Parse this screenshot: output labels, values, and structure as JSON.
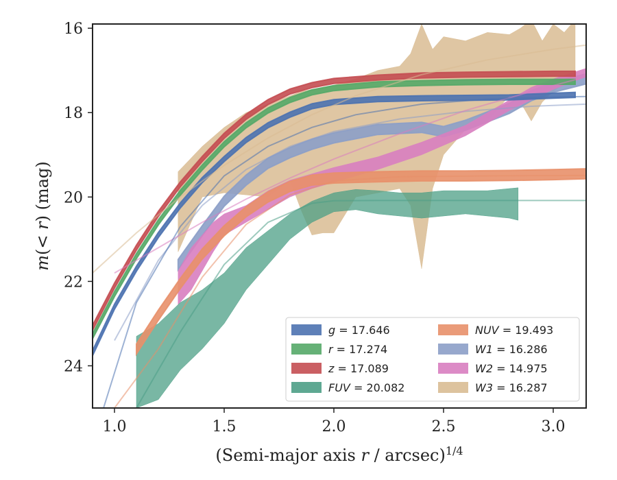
{
  "chart_data": {
    "type": "area",
    "xlabel": "(Semi-major axis r / arcsec)",
    "xlabel_exponent": "1/4",
    "ylabel": "m(< r) (mag)",
    "xlim": [
      0.9,
      3.15
    ],
    "ylim": [
      25.0,
      15.9
    ],
    "y_inverted": true,
    "x_ticks": [
      1.0,
      1.5,
      2.0,
      2.5,
      3.0
    ],
    "x_tick_labels": [
      "1.0",
      "1.5",
      "2.0",
      "2.5",
      "3.0"
    ],
    "y_ticks": [
      16,
      18,
      20,
      22,
      24
    ],
    "y_tick_labels": [
      "16",
      "18",
      "20",
      "22",
      "24"
    ],
    "grid": false,
    "legend_position": "lower-right",
    "legend_columns": 2,
    "series": [
      {
        "key": "g",
        "name": "g",
        "label_value": "17.646",
        "color": "#4c72b0",
        "x": [
          0.9,
          1.0,
          1.1,
          1.2,
          1.3,
          1.4,
          1.5,
          1.6,
          1.7,
          1.8,
          1.9,
          2.0,
          2.2,
          2.4,
          2.6,
          2.8,
          3.0,
          3.1
        ],
        "y": [
          23.7,
          22.6,
          21.7,
          20.9,
          20.2,
          19.6,
          19.1,
          18.65,
          18.3,
          18.05,
          17.85,
          17.75,
          17.68,
          17.66,
          17.65,
          17.64,
          17.6,
          17.58
        ],
        "band": 0.06,
        "fit": {
          "x": [
            0.95,
            1.1,
            1.3,
            1.5,
            1.7,
            1.9,
            2.1,
            2.4,
            2.7,
            3.0,
            3.15
          ],
          "y": [
            25.0,
            22.5,
            20.7,
            19.5,
            18.8,
            18.35,
            18.05,
            17.8,
            17.68,
            17.63,
            17.62
          ]
        }
      },
      {
        "key": "r",
        "name": "r",
        "label_value": "17.274",
        "color": "#55a868",
        "x": [
          0.9,
          1.0,
          1.1,
          1.2,
          1.3,
          1.4,
          1.5,
          1.6,
          1.7,
          1.8,
          1.9,
          2.0,
          2.2,
          2.4,
          2.6,
          2.8,
          3.0,
          3.1
        ],
        "y": [
          23.3,
          22.3,
          21.4,
          20.6,
          19.9,
          19.3,
          18.75,
          18.3,
          17.95,
          17.7,
          17.52,
          17.42,
          17.33,
          17.3,
          17.28,
          17.27,
          17.27,
          17.27
        ],
        "band": 0.06
      },
      {
        "key": "z",
        "name": "z",
        "label_value": "17.089",
        "color": "#c44e52",
        "x": [
          0.9,
          1.0,
          1.1,
          1.2,
          1.3,
          1.4,
          1.5,
          1.6,
          1.7,
          1.8,
          1.9,
          2.0,
          2.2,
          2.4,
          2.6,
          2.8,
          3.0,
          3.1
        ],
        "y": [
          23.1,
          22.1,
          21.2,
          20.4,
          19.7,
          19.1,
          18.55,
          18.1,
          17.75,
          17.5,
          17.35,
          17.25,
          17.17,
          17.12,
          17.1,
          17.09,
          17.08,
          17.08
        ],
        "band": 0.06
      },
      {
        "key": "FUV",
        "name": "FUV",
        "label_value": "20.082",
        "color": "#4c9f86",
        "x": [
          1.1,
          1.2,
          1.3,
          1.4,
          1.5,
          1.6,
          1.7,
          1.8,
          1.9,
          2.0,
          2.1,
          2.2,
          2.3,
          2.4,
          2.5,
          2.6,
          2.7,
          2.8,
          2.84
        ],
        "y_upper": [
          23.3,
          23.0,
          22.5,
          22.2,
          21.8,
          21.2,
          20.8,
          20.4,
          20.1,
          19.9,
          19.82,
          19.85,
          19.9,
          19.9,
          19.85,
          19.85,
          19.85,
          19.8,
          19.78
        ],
        "y_lower": [
          25.0,
          24.8,
          24.1,
          23.6,
          23.0,
          22.2,
          21.6,
          21.0,
          20.6,
          20.35,
          20.3,
          20.4,
          20.45,
          20.5,
          20.45,
          20.4,
          20.45,
          20.5,
          20.55
        ],
        "fit": {
          "x": [
            1.1,
            1.3,
            1.5,
            1.7,
            1.9,
            2.0,
            2.2,
            2.6,
            3.15
          ],
          "y": [
            25.0,
            23.2,
            21.6,
            20.6,
            20.15,
            20.09,
            20.082,
            20.082,
            20.082
          ]
        }
      },
      {
        "key": "NUV",
        "name": "NUV",
        "label_value": "19.493",
        "color": "#e8906a",
        "x": [
          1.1,
          1.2,
          1.3,
          1.4,
          1.5,
          1.6,
          1.7,
          1.8,
          1.9,
          2.0,
          2.2,
          2.4,
          2.6,
          2.8,
          3.0,
          3.15
        ],
        "y": [
          23.6,
          22.8,
          22.05,
          21.35,
          20.8,
          20.35,
          20.0,
          19.75,
          19.6,
          19.55,
          19.52,
          19.5,
          19.5,
          19.49,
          19.47,
          19.45
        ],
        "band": 0.12,
        "fit": {
          "x": [
            1.0,
            1.2,
            1.4,
            1.6,
            1.8,
            2.0,
            2.3,
            2.7,
            3.15
          ],
          "y": [
            25.0,
            23.6,
            21.9,
            20.65,
            19.95,
            19.62,
            19.52,
            19.5,
            19.49
          ]
        }
      },
      {
        "key": "W1",
        "name": "W1",
        "label_value": "16.286",
        "color": "#8c9ec8",
        "x": [
          1.29,
          1.4,
          1.5,
          1.6,
          1.7,
          1.8,
          1.9,
          2.0,
          2.2,
          2.4,
          2.5,
          2.6,
          2.7,
          2.8,
          2.9,
          3.0,
          3.15
        ],
        "y": [
          21.6,
          20.8,
          20.1,
          19.6,
          19.2,
          18.95,
          18.75,
          18.6,
          18.4,
          18.35,
          18.45,
          18.3,
          18.1,
          17.9,
          17.6,
          17.4,
          17.2
        ],
        "band": 0.12,
        "fit": {
          "x": [
            1.0,
            1.2,
            1.4,
            1.6,
            1.8,
            2.0,
            2.3,
            2.6,
            2.9,
            3.15
          ],
          "y": [
            23.4,
            21.5,
            20.2,
            19.35,
            18.8,
            18.45,
            18.15,
            17.97,
            17.85,
            17.8
          ]
        }
      },
      {
        "key": "W2",
        "name": "W2",
        "label_value": "14.975",
        "color": "#d87ec0",
        "x": [
          1.29,
          1.35,
          1.4,
          1.45,
          1.5,
          1.6,
          1.7,
          1.8,
          1.9,
          2.0,
          2.2,
          2.4,
          2.6,
          2.7,
          2.8,
          2.9,
          3.0,
          3.15
        ],
        "y_upper": [
          21.75,
          21.2,
          20.9,
          20.6,
          20.4,
          20.2,
          19.85,
          19.6,
          19.45,
          19.3,
          19.05,
          18.7,
          18.3,
          18.0,
          17.7,
          17.4,
          17.2,
          16.95
        ],
        "y_lower": [
          22.55,
          22.2,
          21.75,
          21.3,
          20.9,
          20.6,
          20.3,
          20.0,
          19.8,
          19.65,
          19.35,
          19.0,
          18.55,
          18.25,
          17.95,
          17.7,
          17.45,
          17.15
        ],
        "fit": {
          "x": [
            1.0,
            1.2,
            1.4,
            1.6,
            1.8,
            2.0,
            2.3,
            2.6,
            2.9,
            3.15
          ],
          "y": [
            21.8,
            21.2,
            20.6,
            20.05,
            19.55,
            19.1,
            18.5,
            17.95,
            17.5,
            17.15
          ]
        }
      },
      {
        "key": "W3",
        "name": "W3",
        "label_value": "16.287",
        "color": "#d9bc93",
        "x": [
          1.29,
          1.4,
          1.5,
          1.6,
          1.7,
          1.8,
          1.85,
          1.9,
          1.95,
          2.0,
          2.1,
          2.2,
          2.3,
          2.35,
          2.4,
          2.45,
          2.5,
          2.6,
          2.7,
          2.8,
          2.85,
          2.9,
          2.95,
          3.0,
          3.05,
          3.1
        ],
        "y_upper": [
          19.4,
          18.8,
          18.35,
          18.0,
          17.8,
          17.6,
          17.5,
          17.45,
          17.4,
          17.35,
          17.2,
          17.0,
          16.9,
          16.6,
          15.9,
          16.5,
          16.2,
          16.3,
          16.1,
          16.15,
          16.0,
          15.8,
          16.3,
          15.9,
          16.1,
          15.8
        ],
        "y_lower": [
          21.3,
          20.0,
          19.9,
          19.95,
          20.0,
          19.6,
          20.3,
          20.9,
          20.85,
          20.85,
          20.0,
          19.9,
          19.8,
          20.2,
          21.7,
          19.8,
          19.0,
          18.4,
          18.2,
          17.6,
          17.75,
          18.2,
          17.75,
          17.5,
          17.3,
          17.1
        ],
        "fit": {
          "x": [
            0.9,
            1.1,
            1.3,
            1.5,
            1.7,
            1.9,
            2.1,
            2.4,
            2.7,
            3.0,
            3.15
          ],
          "y": [
            21.8,
            20.85,
            20.0,
            19.25,
            18.6,
            18.05,
            17.6,
            17.1,
            16.75,
            16.5,
            16.4
          ]
        }
      }
    ]
  }
}
